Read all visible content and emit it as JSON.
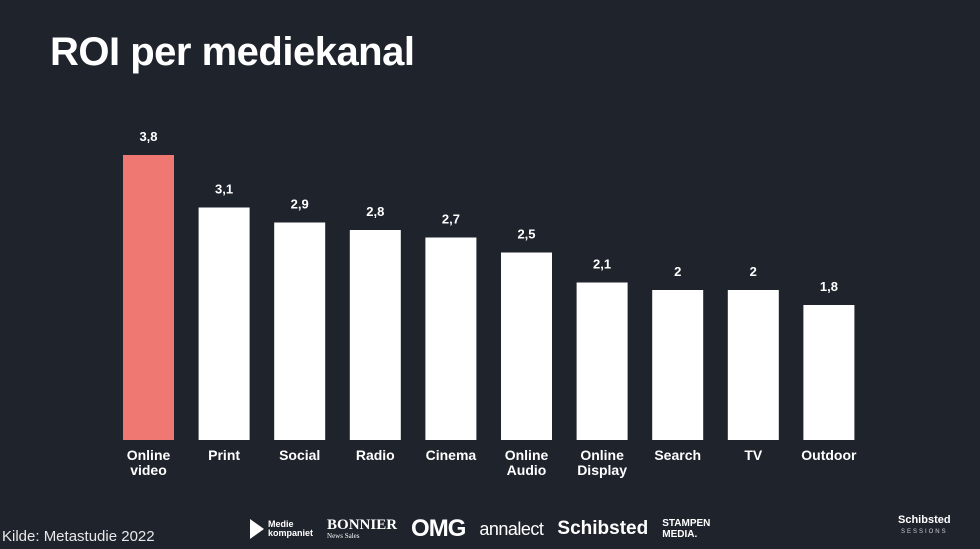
{
  "title": "ROI per mediekanal",
  "source": "Kilde: Metastudie 2022",
  "logos": {
    "mediekompaniet": [
      "Medie",
      "kompaniet"
    ],
    "bonnier": "BONNIER",
    "bonnier_sub": "News Sales",
    "omg": "OMG",
    "annalect": "annalect",
    "schibsted": "Schibsted",
    "stampen": [
      "STAMPEN",
      "MEDIA."
    ],
    "schibsted_sessions": "Schibsted",
    "schibsted_sessions_sub": "SESSIONS"
  },
  "colors": {
    "background": "#1f232c",
    "highlight_bar": "#ef7872",
    "bar": "#ffffff",
    "text": "#ffffff"
  },
  "chart_data": {
    "type": "bar",
    "title": "ROI per mediekanal",
    "xlabel": "",
    "ylabel": "",
    "categories": [
      [
        "Online",
        "video"
      ],
      [
        "Print"
      ],
      [
        "Social"
      ],
      [
        "Radio"
      ],
      [
        "Cinema"
      ],
      [
        "Online",
        "Audio"
      ],
      [
        "Online",
        "Display"
      ],
      [
        "Search"
      ],
      [
        "TV"
      ],
      [
        "Outdoor"
      ]
    ],
    "values": [
      3.8,
      3.1,
      2.9,
      2.8,
      2.7,
      2.5,
      2.1,
      2.0,
      2.0,
      1.8
    ],
    "value_labels": [
      "3,8",
      "3,1",
      "2,9",
      "2,8",
      "2,7",
      "2,5",
      "2,1",
      "2",
      "2",
      "1,8"
    ],
    "highlight_index": 0,
    "ylim": [
      0,
      3.8
    ],
    "grid": false,
    "legend": "none"
  }
}
